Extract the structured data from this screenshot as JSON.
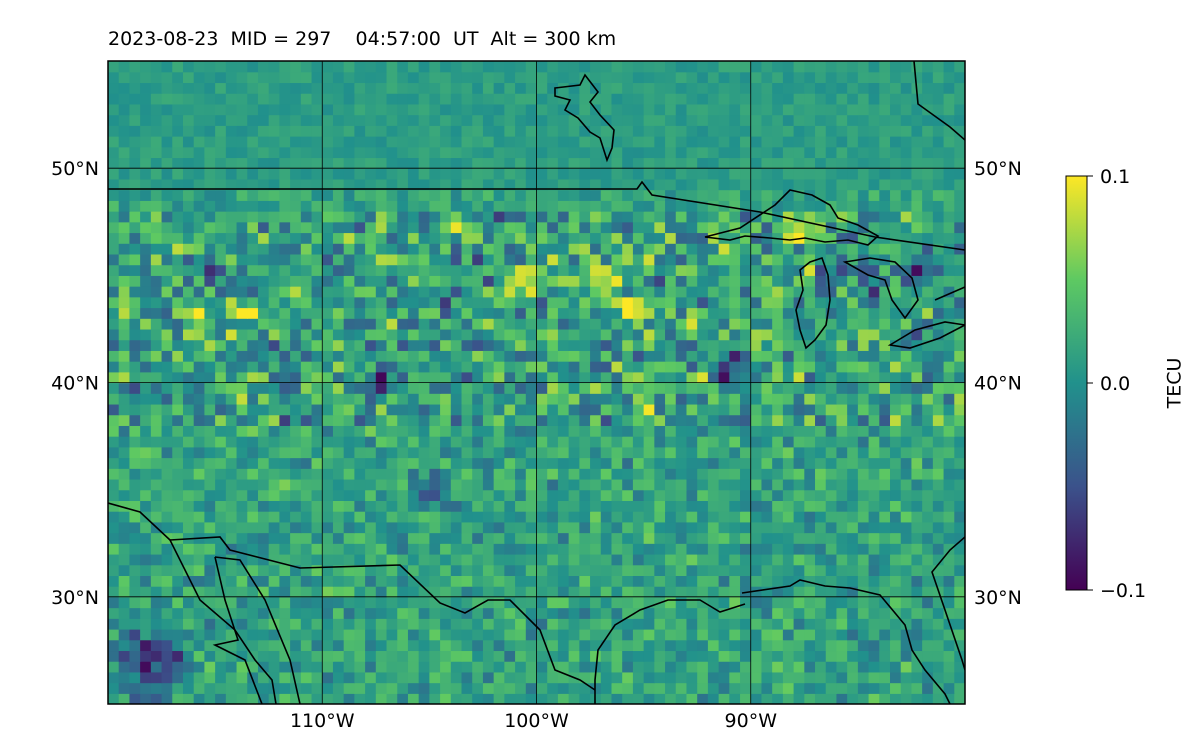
{
  "chart_data": {
    "type": "heatmap",
    "title": "2023-08-23  MID = 297    04:57:00  UT  Alt = 300 km",
    "map": {
      "projection": "plate-carree",
      "lon_range": [
        -120,
        -80
      ],
      "lat_range": [
        25,
        55
      ],
      "grid_lons": [
        -110,
        -100,
        -90
      ],
      "grid_lats": [
        30,
        40,
        50
      ],
      "lon_tick_labels": [
        "110°W",
        "100°W",
        "90°W"
      ],
      "lat_tick_labels": [
        "30°N",
        "40°N",
        "50°N"
      ],
      "grid": true,
      "cell_size_deg": 0.5
    },
    "colorbar": {
      "label": "TECU",
      "range": [
        -0.1,
        0.1
      ],
      "ticks": [
        -0.1,
        0.0,
        0.1
      ],
      "tick_labels": [
        "−0.1",
        "0.0",
        "0.1"
      ],
      "colormap": "viridis",
      "position": "right"
    },
    "hotspots": [
      {
        "lon": -116.0,
        "lat": 43.3,
        "v": 0.11,
        "r": 1.0
      },
      {
        "lon": -113.5,
        "lat": 43.2,
        "v": 0.1,
        "r": 0.8
      },
      {
        "lon": -115.0,
        "lat": 45.0,
        "v": -0.1,
        "r": 1.0
      },
      {
        "lon": -111.0,
        "lat": 44.0,
        "v": 0.07,
        "r": 0.9
      },
      {
        "lon": -107.5,
        "lat": 40.0,
        "v": -0.1,
        "r": 1.0
      },
      {
        "lon": -105.0,
        "lat": 35.0,
        "v": -0.08,
        "r": 1.2
      },
      {
        "lon": -100.5,
        "lat": 44.5,
        "v": 0.09,
        "r": 1.0
      },
      {
        "lon": -97.0,
        "lat": 45.0,
        "v": 0.1,
        "r": 1.4
      },
      {
        "lon": -95.5,
        "lat": 43.5,
        "v": 0.11,
        "r": 1.0
      },
      {
        "lon": -93.5,
        "lat": 41.5,
        "v": -0.06,
        "r": 1.0
      },
      {
        "lon": -91.0,
        "lat": 40.5,
        "v": -0.08,
        "r": 1.3
      },
      {
        "lon": -88.0,
        "lat": 47.0,
        "v": 0.09,
        "r": 1.0
      },
      {
        "lon": -84.5,
        "lat": 45.0,
        "v": -0.1,
        "r": 1.3
      },
      {
        "lon": -82.5,
        "lat": 45.2,
        "v": -0.08,
        "r": 0.8
      },
      {
        "lon": -118.0,
        "lat": 27.0,
        "v": -0.11,
        "r": 2.2
      },
      {
        "lon": -104.0,
        "lat": 46.0,
        "v": -0.07,
        "r": 1.0
      },
      {
        "lon": -109.5,
        "lat": 42.0,
        "v": 0.05,
        "r": 1.0
      }
    ]
  }
}
